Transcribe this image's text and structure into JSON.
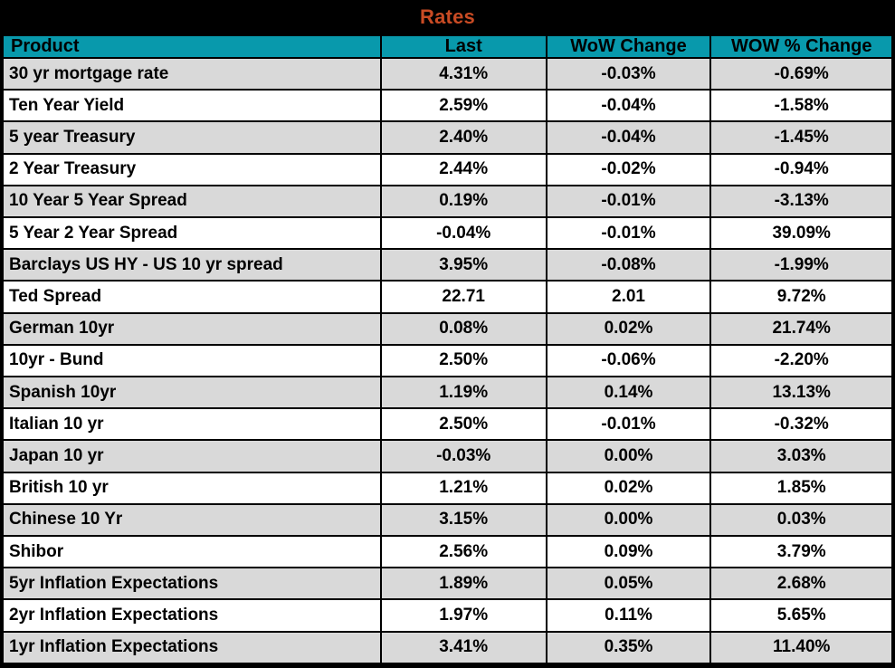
{
  "title": "Rates",
  "colors": {
    "title_bg": "#000000",
    "title_color": "#C94B24",
    "header_bg": "#0899AC",
    "row_alt_bg": "#D9D9D9",
    "row_bg": "#FFFFFF",
    "border": "#000000",
    "text": "#000000"
  },
  "table": {
    "columns": [
      "Product",
      "Last",
      "WoW Change",
      "WOW % Change"
    ],
    "rows": [
      {
        "product": "30 yr mortgage rate",
        "last": "4.31%",
        "wow_change": "-0.03%",
        "wow_pct_change": "-0.69%"
      },
      {
        "product": "Ten Year Yield",
        "last": "2.59%",
        "wow_change": "-0.04%",
        "wow_pct_change": "-1.58%"
      },
      {
        "product": "5 year Treasury",
        "last": "2.40%",
        "wow_change": "-0.04%",
        "wow_pct_change": "-1.45%"
      },
      {
        "product": "2 Year Treasury",
        "last": "2.44%",
        "wow_change": "-0.02%",
        "wow_pct_change": "-0.94%"
      },
      {
        "product": "10 Year 5 Year Spread",
        "last": "0.19%",
        "wow_change": "-0.01%",
        "wow_pct_change": "-3.13%"
      },
      {
        "product": "5 Year 2 Year Spread",
        "last": "-0.04%",
        "wow_change": "-0.01%",
        "wow_pct_change": "39.09%"
      },
      {
        "product": "Barclays US HY - US 10 yr spread",
        "last": "3.95%",
        "wow_change": "-0.08%",
        "wow_pct_change": "-1.99%"
      },
      {
        "product": "Ted Spread",
        "last": "22.71",
        "wow_change": "2.01",
        "wow_pct_change": "9.72%"
      },
      {
        "product": "German 10yr",
        "last": "0.08%",
        "wow_change": "0.02%",
        "wow_pct_change": "21.74%"
      },
      {
        "product": "10yr - Bund",
        "last": "2.50%",
        "wow_change": "-0.06%",
        "wow_pct_change": "-2.20%"
      },
      {
        "product": "Spanish 10yr",
        "last": "1.19%",
        "wow_change": "0.14%",
        "wow_pct_change": "13.13%"
      },
      {
        "product": "Italian 10 yr",
        "last": "2.50%",
        "wow_change": "-0.01%",
        "wow_pct_change": "-0.32%"
      },
      {
        "product": "Japan 10 yr",
        "last": "-0.03%",
        "wow_change": "0.00%",
        "wow_pct_change": "3.03%"
      },
      {
        "product": "British 10 yr",
        "last": "1.21%",
        "wow_change": "0.02%",
        "wow_pct_change": "1.85%"
      },
      {
        "product": "Chinese 10 Yr",
        "last": "3.15%",
        "wow_change": "0.00%",
        "wow_pct_change": "0.03%"
      },
      {
        "product": "Shibor",
        "last": "2.56%",
        "wow_change": "0.09%",
        "wow_pct_change": "3.79%"
      },
      {
        "product": "5yr Inflation Expectations",
        "last": "1.89%",
        "wow_change": "0.05%",
        "wow_pct_change": "2.68%"
      },
      {
        "product": "2yr Inflation Expectations",
        "last": "1.97%",
        "wow_change": "0.11%",
        "wow_pct_change": "5.65%"
      },
      {
        "product": "1yr Inflation Expectations",
        "last": "3.41%",
        "wow_change": "0.35%",
        "wow_pct_change": "11.40%"
      }
    ]
  }
}
